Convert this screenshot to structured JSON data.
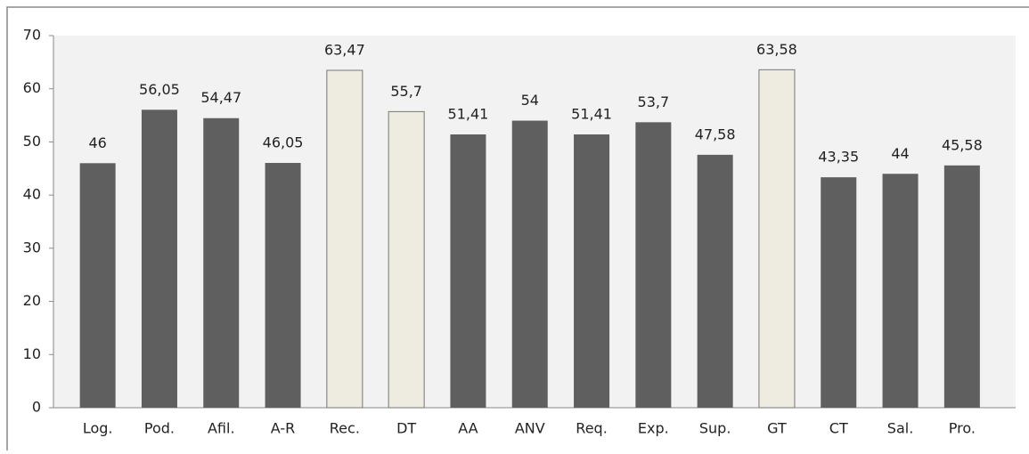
{
  "chart_data": {
    "type": "bar",
    "categories": [
      "Log.",
      "Pod.",
      "Afil.",
      "A-R",
      "Rec.",
      "DT",
      "AA",
      "ANV",
      "Req.",
      "Exp.",
      "Sup.",
      "GT",
      "CT",
      "Sal.",
      "Pro."
    ],
    "values": [
      46,
      56.05,
      54.47,
      46.05,
      63.47,
      55.7,
      51.41,
      54,
      51.41,
      53.7,
      47.58,
      63.58,
      43.35,
      44,
      45.58
    ],
    "value_labels": [
      "46",
      "56,05",
      "54,47",
      "46,05",
      "63,47",
      "55,7",
      "51,41",
      "54",
      "51,41",
      "53,7",
      "47,58",
      "63,58",
      "43,35",
      "44",
      "45,58"
    ],
    "colors": [
      "#5f5f5f",
      "#5f5f5f",
      "#5f5f5f",
      "#5f5f5f",
      "#eeece1",
      "#eeece1",
      "#5f5f5f",
      "#5f5f5f",
      "#5f5f5f",
      "#5f5f5f",
      "#5f5f5f",
      "#eeece1",
      "#5f5f5f",
      "#5f5f5f",
      "#5f5f5f"
    ],
    "ylim": [
      0,
      70
    ],
    "yticks": [
      0,
      10,
      20,
      30,
      40,
      50,
      60,
      70
    ],
    "grid": false
  }
}
